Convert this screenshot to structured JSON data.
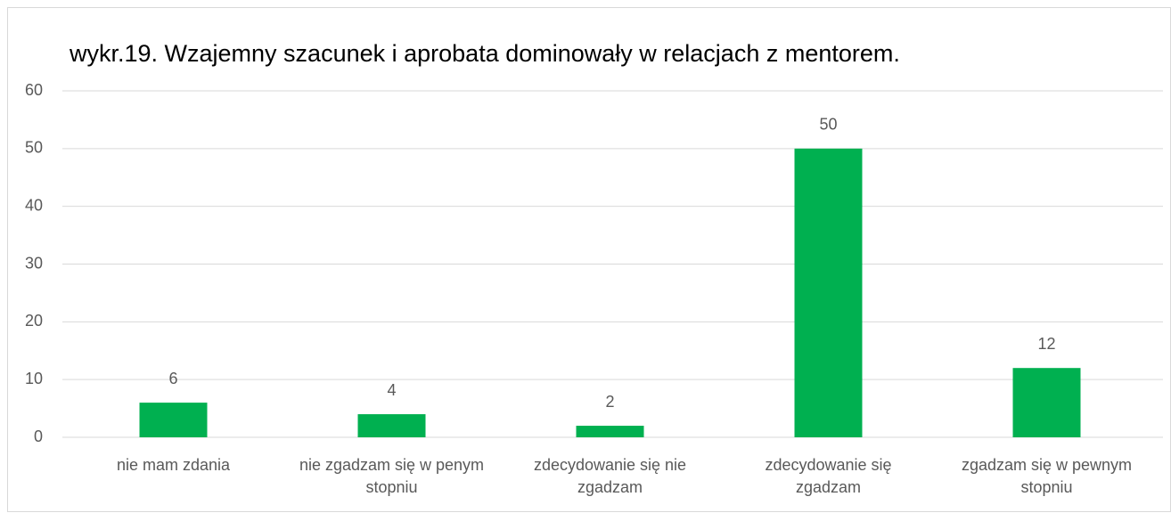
{
  "chart_data": {
    "type": "bar",
    "title": "wykr.19. Wzajemny szacunek i aprobata dominowały w relacjach z mentorem.",
    "categories": [
      "nie mam zdania",
      "nie zgadzam się w penym stopniu",
      "zdecydowanie się nie zgadzam",
      "zdecydowanie się zgadzam",
      "zgadzam się w pewnym stopniu"
    ],
    "values": [
      6,
      4,
      2,
      50,
      12
    ],
    "color": "#00b050",
    "ylim": [
      0,
      60
    ],
    "yticks": [
      0,
      10,
      20,
      30,
      40,
      50,
      60
    ],
    "grid": true
  }
}
